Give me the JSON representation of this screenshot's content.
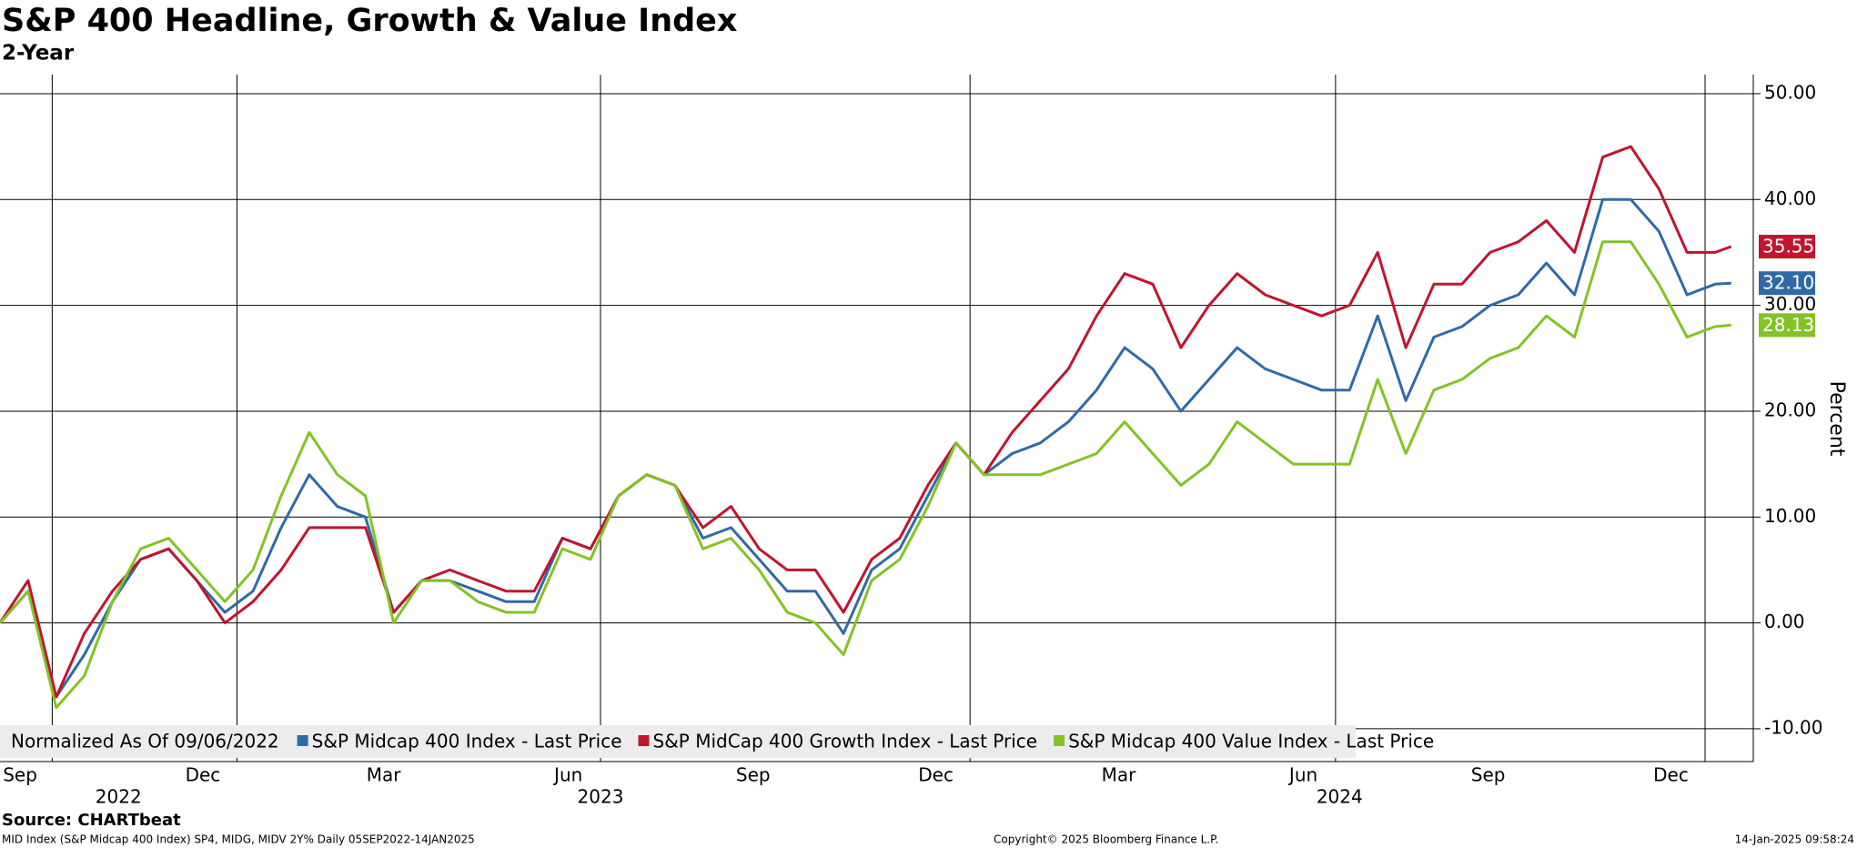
{
  "chart_data": {
    "type": "line",
    "title": "S&P 400 Headline, Growth & Value Index",
    "subtitle": "2-Year",
    "y_label": "Percent",
    "legend_note": "Normalized As Of 09/06/2022",
    "source": "Source: CHARTbeat",
    "footer_left": "MID Index (S&P Midcap 400 Index) SP4, MIDG, MIDV 2Y%  Daily 05SEP2022-14JAN2025",
    "footer_center": "Copyright© 2025 Bloomberg Finance L.P.",
    "footer_right": "14-Jan-2025 09:58:24",
    "x": [
      "2022-09-05",
      "2022-09-19",
      "2022-10-03",
      "2022-10-17",
      "2022-10-31",
      "2022-11-14",
      "2022-11-28",
      "2022-12-12",
      "2022-12-26",
      "2023-01-09",
      "2023-01-23",
      "2023-02-06",
      "2023-02-20",
      "2023-03-06",
      "2023-03-20",
      "2023-04-03",
      "2023-04-17",
      "2023-05-01",
      "2023-05-15",
      "2023-05-29",
      "2023-06-12",
      "2023-06-26",
      "2023-07-10",
      "2023-07-24",
      "2023-08-07",
      "2023-08-21",
      "2023-09-04",
      "2023-09-18",
      "2023-10-02",
      "2023-10-16",
      "2023-10-30",
      "2023-11-13",
      "2023-11-27",
      "2023-12-11",
      "2023-12-25",
      "2024-01-08",
      "2024-01-22",
      "2024-02-05",
      "2024-02-19",
      "2024-03-04",
      "2024-03-18",
      "2024-04-01",
      "2024-04-15",
      "2024-04-29",
      "2024-05-13",
      "2024-05-27",
      "2024-06-10",
      "2024-06-24",
      "2024-07-08",
      "2024-07-22",
      "2024-08-05",
      "2024-08-19",
      "2024-09-02",
      "2024-09-16",
      "2024-09-30",
      "2024-10-14",
      "2024-10-28",
      "2024-11-11",
      "2024-11-25",
      "2024-12-09",
      "2024-12-23",
      "2025-01-06",
      "2025-01-14"
    ],
    "series": [
      {
        "name": "S&P Midcap 400 Index - Last Price",
        "color": "#2f6aa6",
        "values": [
          0,
          3,
          -7,
          -3,
          2,
          6,
          7,
          4,
          1,
          3,
          9,
          14,
          11,
          10,
          1,
          4,
          4,
          3,
          2,
          2,
          8,
          7,
          12,
          14,
          13,
          8,
          9,
          6,
          3,
          3,
          -1,
          5,
          7,
          12,
          17,
          14,
          16,
          17,
          19,
          22,
          26,
          24,
          20,
          23,
          26,
          24,
          23,
          22,
          22,
          29,
          21,
          27,
          28,
          30,
          31,
          34,
          31,
          40,
          40,
          37,
          31,
          32,
          32.1
        ],
        "value_labels": [
          null,
          null,
          null,
          null,
          null,
          null,
          null,
          null,
          null,
          null,
          null,
          null,
          null,
          null,
          null,
          null,
          null,
          null,
          null,
          null,
          null,
          null,
          null,
          null,
          null,
          null,
          null,
          null,
          null,
          null,
          null,
          null,
          null,
          null,
          null,
          null,
          null,
          null,
          null,
          null,
          null,
          null,
          null,
          null,
          null,
          null,
          null,
          null,
          null,
          null,
          null,
          null,
          null,
          null,
          null,
          null,
          null,
          null,
          null,
          null,
          null,
          null,
          "32.10"
        ]
      },
      {
        "name": "S&P MidCap 400 Growth Index - Last Price",
        "color": "#c0142f",
        "values": [
          0,
          4,
          -7,
          -1,
          3,
          6,
          7,
          4,
          0,
          2,
          5,
          9,
          9,
          9,
          1,
          4,
          5,
          4,
          3,
          3,
          8,
          7,
          12,
          14,
          13,
          9,
          11,
          7,
          5,
          5,
          1,
          6,
          8,
          13,
          17,
          14,
          18,
          21,
          24,
          29,
          33,
          32,
          26,
          30,
          33,
          31,
          30,
          29,
          30,
          35,
          26,
          32,
          32,
          35,
          36,
          38,
          35,
          44,
          45,
          41,
          35,
          35,
          35.55
        ],
        "value_labels": [
          null,
          null,
          null,
          null,
          null,
          null,
          null,
          null,
          null,
          null,
          null,
          null,
          null,
          null,
          null,
          null,
          null,
          null,
          null,
          null,
          null,
          null,
          null,
          null,
          null,
          null,
          null,
          null,
          null,
          null,
          null,
          null,
          null,
          null,
          null,
          null,
          null,
          null,
          null,
          null,
          null,
          null,
          null,
          null,
          null,
          null,
          null,
          null,
          null,
          null,
          null,
          null,
          null,
          null,
          null,
          null,
          null,
          null,
          null,
          null,
          null,
          null,
          "35.55"
        ]
      },
      {
        "name": "S&P Midcap 400 Value Index - Last Price",
        "color": "#84c225",
        "values": [
          0,
          3,
          -8,
          -5,
          2,
          7,
          8,
          5,
          2,
          5,
          12,
          18,
          14,
          12,
          0,
          4,
          4,
          2,
          1,
          1,
          7,
          6,
          12,
          14,
          13,
          7,
          8,
          5,
          1,
          0,
          -3,
          4,
          6,
          11,
          17,
          14,
          14,
          14,
          15,
          16,
          19,
          16,
          13,
          15,
          19,
          17,
          15,
          15,
          15,
          23,
          16,
          22,
          23,
          25,
          26,
          29,
          27,
          36,
          36,
          32,
          27,
          28,
          28.13
        ],
        "value_labels": [
          null,
          null,
          null,
          null,
          null,
          null,
          null,
          null,
          null,
          null,
          null,
          null,
          null,
          null,
          null,
          null,
          null,
          null,
          null,
          null,
          null,
          null,
          null,
          null,
          null,
          null,
          null,
          null,
          null,
          null,
          null,
          null,
          null,
          null,
          null,
          null,
          null,
          null,
          null,
          null,
          null,
          null,
          null,
          null,
          null,
          null,
          null,
          null,
          null,
          null,
          null,
          null,
          null,
          null,
          null,
          null,
          null,
          null,
          null,
          null,
          null,
          null,
          "28.13"
        ]
      }
    ],
    "xlim": [
      "2022-09-05",
      "2025-01-25"
    ],
    "xticks": [
      {
        "value": "2022-09-15",
        "label": "Sep"
      },
      {
        "value": "2022-12-15",
        "label": "Dec"
      },
      {
        "value": "2023-03-15",
        "label": "Mar"
      },
      {
        "value": "2023-06-15",
        "label": "Jun"
      },
      {
        "value": "2023-09-15",
        "label": "Sep"
      },
      {
        "value": "2023-12-15",
        "label": "Dec"
      },
      {
        "value": "2024-03-15",
        "label": "Mar"
      },
      {
        "value": "2024-06-15",
        "label": "Jun"
      },
      {
        "value": "2024-09-15",
        "label": "Sep"
      },
      {
        "value": "2024-12-15",
        "label": "Dec"
      }
    ],
    "year_ticks": [
      {
        "value": "2022-11-03",
        "label": "2022"
      },
      {
        "value": "2023-07-01",
        "label": "2023"
      },
      {
        "value": "2024-07-03",
        "label": "2024"
      }
    ],
    "xgrid": [
      "2022-10-01",
      "2023-01-01",
      "2023-07-01",
      "2024-01-01",
      "2024-07-01",
      "2025-01-01"
    ],
    "ylim": [
      -13.1,
      51.8
    ],
    "yticks": [
      {
        "value": 50,
        "label": "50.00"
      },
      {
        "value": 40,
        "label": "40.00"
      },
      {
        "value": 30,
        "label": "30.00"
      },
      {
        "value": 20,
        "label": "20.00"
      },
      {
        "value": 10,
        "label": "10.00"
      },
      {
        "value": 0,
        "label": "0.00"
      },
      {
        "value": -10,
        "label": "-10.00"
      }
    ],
    "grid": true
  }
}
